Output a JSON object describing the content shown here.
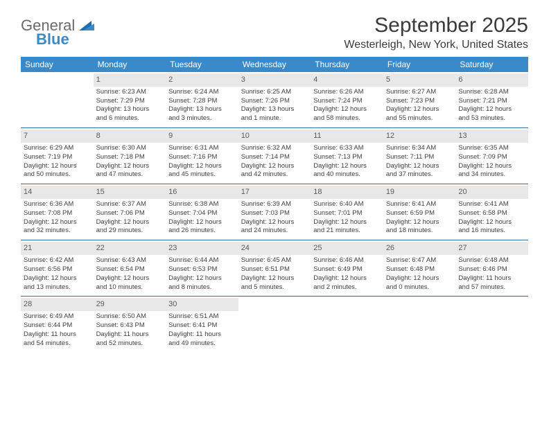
{
  "logo": {
    "line1": "General",
    "line2": "Blue"
  },
  "title": "September 2025",
  "subtitle": "Westerleigh, New York, United States",
  "colors": {
    "header_bg": "#3a8ac9",
    "header_text": "#ffffff",
    "daynum_bg": "#e8e8e8",
    "rule": "#2e6ea0",
    "logo_blue": "#3a8ac9",
    "logo_gray": "#6a6a6a"
  },
  "day_headers": [
    "Sunday",
    "Monday",
    "Tuesday",
    "Wednesday",
    "Thursday",
    "Friday",
    "Saturday"
  ],
  "weeks": [
    [
      null,
      {
        "n": "1",
        "sunrise": "Sunrise: 6:23 AM",
        "sunset": "Sunset: 7:29 PM",
        "day1": "Daylight: 13 hours",
        "day2": "and 6 minutes."
      },
      {
        "n": "2",
        "sunrise": "Sunrise: 6:24 AM",
        "sunset": "Sunset: 7:28 PM",
        "day1": "Daylight: 13 hours",
        "day2": "and 3 minutes."
      },
      {
        "n": "3",
        "sunrise": "Sunrise: 6:25 AM",
        "sunset": "Sunset: 7:26 PM",
        "day1": "Daylight: 13 hours",
        "day2": "and 1 minute."
      },
      {
        "n": "4",
        "sunrise": "Sunrise: 6:26 AM",
        "sunset": "Sunset: 7:24 PM",
        "day1": "Daylight: 12 hours",
        "day2": "and 58 minutes."
      },
      {
        "n": "5",
        "sunrise": "Sunrise: 6:27 AM",
        "sunset": "Sunset: 7:23 PM",
        "day1": "Daylight: 12 hours",
        "day2": "and 55 minutes."
      },
      {
        "n": "6",
        "sunrise": "Sunrise: 6:28 AM",
        "sunset": "Sunset: 7:21 PM",
        "day1": "Daylight: 12 hours",
        "day2": "and 53 minutes."
      }
    ],
    [
      {
        "n": "7",
        "sunrise": "Sunrise: 6:29 AM",
        "sunset": "Sunset: 7:19 PM",
        "day1": "Daylight: 12 hours",
        "day2": "and 50 minutes."
      },
      {
        "n": "8",
        "sunrise": "Sunrise: 6:30 AM",
        "sunset": "Sunset: 7:18 PM",
        "day1": "Daylight: 12 hours",
        "day2": "and 47 minutes."
      },
      {
        "n": "9",
        "sunrise": "Sunrise: 6:31 AM",
        "sunset": "Sunset: 7:16 PM",
        "day1": "Daylight: 12 hours",
        "day2": "and 45 minutes."
      },
      {
        "n": "10",
        "sunrise": "Sunrise: 6:32 AM",
        "sunset": "Sunset: 7:14 PM",
        "day1": "Daylight: 12 hours",
        "day2": "and 42 minutes."
      },
      {
        "n": "11",
        "sunrise": "Sunrise: 6:33 AM",
        "sunset": "Sunset: 7:13 PM",
        "day1": "Daylight: 12 hours",
        "day2": "and 40 minutes."
      },
      {
        "n": "12",
        "sunrise": "Sunrise: 6:34 AM",
        "sunset": "Sunset: 7:11 PM",
        "day1": "Daylight: 12 hours",
        "day2": "and 37 minutes."
      },
      {
        "n": "13",
        "sunrise": "Sunrise: 6:35 AM",
        "sunset": "Sunset: 7:09 PM",
        "day1": "Daylight: 12 hours",
        "day2": "and 34 minutes."
      }
    ],
    [
      {
        "n": "14",
        "sunrise": "Sunrise: 6:36 AM",
        "sunset": "Sunset: 7:08 PM",
        "day1": "Daylight: 12 hours",
        "day2": "and 32 minutes."
      },
      {
        "n": "15",
        "sunrise": "Sunrise: 6:37 AM",
        "sunset": "Sunset: 7:06 PM",
        "day1": "Daylight: 12 hours",
        "day2": "and 29 minutes."
      },
      {
        "n": "16",
        "sunrise": "Sunrise: 6:38 AM",
        "sunset": "Sunset: 7:04 PM",
        "day1": "Daylight: 12 hours",
        "day2": "and 26 minutes."
      },
      {
        "n": "17",
        "sunrise": "Sunrise: 6:39 AM",
        "sunset": "Sunset: 7:03 PM",
        "day1": "Daylight: 12 hours",
        "day2": "and 24 minutes."
      },
      {
        "n": "18",
        "sunrise": "Sunrise: 6:40 AM",
        "sunset": "Sunset: 7:01 PM",
        "day1": "Daylight: 12 hours",
        "day2": "and 21 minutes."
      },
      {
        "n": "19",
        "sunrise": "Sunrise: 6:41 AM",
        "sunset": "Sunset: 6:59 PM",
        "day1": "Daylight: 12 hours",
        "day2": "and 18 minutes."
      },
      {
        "n": "20",
        "sunrise": "Sunrise: 6:41 AM",
        "sunset": "Sunset: 6:58 PM",
        "day1": "Daylight: 12 hours",
        "day2": "and 16 minutes."
      }
    ],
    [
      {
        "n": "21",
        "sunrise": "Sunrise: 6:42 AM",
        "sunset": "Sunset: 6:56 PM",
        "day1": "Daylight: 12 hours",
        "day2": "and 13 minutes."
      },
      {
        "n": "22",
        "sunrise": "Sunrise: 6:43 AM",
        "sunset": "Sunset: 6:54 PM",
        "day1": "Daylight: 12 hours",
        "day2": "and 10 minutes."
      },
      {
        "n": "23",
        "sunrise": "Sunrise: 6:44 AM",
        "sunset": "Sunset: 6:53 PM",
        "day1": "Daylight: 12 hours",
        "day2": "and 8 minutes."
      },
      {
        "n": "24",
        "sunrise": "Sunrise: 6:45 AM",
        "sunset": "Sunset: 6:51 PM",
        "day1": "Daylight: 12 hours",
        "day2": "and 5 minutes."
      },
      {
        "n": "25",
        "sunrise": "Sunrise: 6:46 AM",
        "sunset": "Sunset: 6:49 PM",
        "day1": "Daylight: 12 hours",
        "day2": "and 2 minutes."
      },
      {
        "n": "26",
        "sunrise": "Sunrise: 6:47 AM",
        "sunset": "Sunset: 6:48 PM",
        "day1": "Daylight: 12 hours",
        "day2": "and 0 minutes."
      },
      {
        "n": "27",
        "sunrise": "Sunrise: 6:48 AM",
        "sunset": "Sunset: 6:46 PM",
        "day1": "Daylight: 11 hours",
        "day2": "and 57 minutes."
      }
    ],
    [
      {
        "n": "28",
        "sunrise": "Sunrise: 6:49 AM",
        "sunset": "Sunset: 6:44 PM",
        "day1": "Daylight: 11 hours",
        "day2": "and 54 minutes."
      },
      {
        "n": "29",
        "sunrise": "Sunrise: 6:50 AM",
        "sunset": "Sunset: 6:43 PM",
        "day1": "Daylight: 11 hours",
        "day2": "and 52 minutes."
      },
      {
        "n": "30",
        "sunrise": "Sunrise: 6:51 AM",
        "sunset": "Sunset: 6:41 PM",
        "day1": "Daylight: 11 hours",
        "day2": "and 49 minutes."
      },
      null,
      null,
      null,
      null
    ]
  ]
}
